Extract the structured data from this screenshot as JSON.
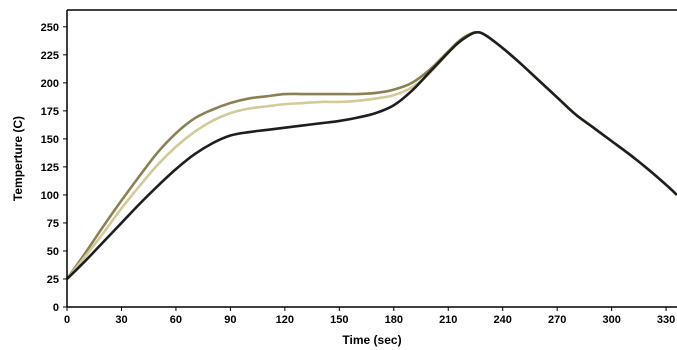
{
  "chart_data": {
    "type": "line",
    "title": "",
    "xlabel": "Time (sec)",
    "ylabel": "Temperture (C)",
    "xlim": [
      0,
      336
    ],
    "ylim": [
      0,
      265
    ],
    "xticks": [
      0,
      30,
      60,
      90,
      120,
      150,
      180,
      210,
      240,
      270,
      300,
      330
    ],
    "yticks": [
      0,
      25,
      50,
      75,
      100,
      125,
      150,
      175,
      200,
      225,
      250
    ],
    "grid": false,
    "legend": "none",
    "series": [
      {
        "color": "#8b8053",
        "x": [
          0,
          10,
          20,
          30,
          40,
          50,
          60,
          70,
          80,
          90,
          100,
          110,
          120,
          130,
          140,
          150,
          160,
          170,
          180,
          190,
          200,
          210,
          215,
          220,
          225,
          230,
          240,
          250,
          260,
          270,
          280,
          290,
          300,
          310,
          320,
          330,
          336
        ],
        "y": [
          25,
          48,
          72,
          95,
          117,
          138,
          155,
          168,
          176,
          182,
          186,
          188,
          190,
          190,
          190,
          190,
          190,
          191,
          194,
          200,
          212,
          228,
          236,
          242,
          245,
          243,
          231,
          217,
          202,
          187,
          172,
          160,
          148,
          136,
          123,
          109,
          100
        ]
      },
      {
        "color": "#d3ca9a",
        "x": [
          0,
          10,
          20,
          30,
          40,
          50,
          60,
          70,
          80,
          90,
          100,
          110,
          120,
          130,
          140,
          150,
          160,
          170,
          180,
          190,
          200,
          210,
          215,
          220,
          225,
          230,
          240,
          250,
          260,
          270,
          280,
          290,
          300,
          310,
          320,
          330,
          336
        ],
        "y": [
          25,
          45,
          66,
          88,
          108,
          127,
          143,
          156,
          166,
          173,
          177,
          179,
          181,
          182,
          183,
          183,
          184,
          186,
          189,
          196,
          209,
          227,
          235,
          241,
          245,
          243,
          231,
          217,
          202,
          187,
          172,
          160,
          148,
          136,
          123,
          109,
          100
        ]
      },
      {
        "color": "#1e1e1e",
        "x": [
          0,
          10,
          20,
          30,
          40,
          50,
          60,
          70,
          80,
          90,
          100,
          110,
          120,
          130,
          140,
          150,
          160,
          170,
          180,
          190,
          200,
          210,
          215,
          220,
          225,
          230,
          240,
          250,
          260,
          270,
          280,
          290,
          300,
          310,
          320,
          330,
          336
        ],
        "y": [
          25,
          41,
          58,
          75,
          92,
          108,
          123,
          136,
          146,
          153,
          156,
          158,
          160,
          162,
          164,
          166,
          169,
          173,
          180,
          193,
          210,
          227,
          235,
          241,
          245,
          243,
          231,
          217,
          202,
          187,
          172,
          160,
          148,
          136,
          123,
          109,
          100
        ]
      }
    ]
  }
}
